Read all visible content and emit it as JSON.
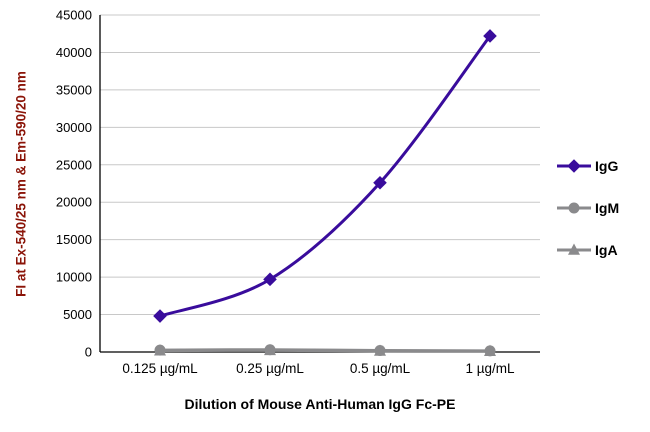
{
  "chart_data": {
    "type": "line",
    "categories": [
      "0.125 µg/mL",
      "0.25 µg/mL",
      "0.5 µg/mL",
      "1 µg/mL"
    ],
    "series": [
      {
        "name": "IgG",
        "marker": "diamond",
        "color": "#390c9c",
        "values": [
          4800,
          9700,
          22600,
          42200
        ]
      },
      {
        "name": "IgM",
        "marker": "circle",
        "color": "#8a8a8c",
        "values": [
          250,
          300,
          200,
          150
        ]
      },
      {
        "name": "IgA",
        "marker": "triangle",
        "color": "#8a8a8c",
        "values": [
          180,
          220,
          140,
          110
        ]
      }
    ],
    "xlabel": "Dilution of Mouse Anti-Human IgG Fc-PE",
    "ylabel": "FI at Ex-540/25 nm & Em-590/20 nm",
    "ylim": [
      0,
      45000
    ],
    "ytick_step": 5000,
    "grid": true,
    "legend_position": "right"
  },
  "colors": {
    "y_axis_title": "#8b1408",
    "axis": "#000000",
    "grid": "#c8c8c8",
    "text": "#000000",
    "background": "#ffffff"
  }
}
